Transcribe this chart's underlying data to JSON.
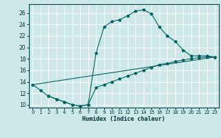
{
  "xlabel": "Humidex (Indice chaleur)",
  "bg_color": "#cde8e8",
  "grid_color": "#ffffff",
  "line_color": "#006060",
  "xlim": [
    -0.5,
    23.5
  ],
  "ylim": [
    9.5,
    27.5
  ],
  "xticks": [
    0,
    1,
    2,
    3,
    4,
    5,
    6,
    7,
    8,
    9,
    10,
    11,
    12,
    13,
    14,
    15,
    16,
    17,
    18,
    19,
    20,
    21,
    22,
    23
  ],
  "yticks": [
    10,
    12,
    14,
    16,
    18,
    20,
    22,
    24,
    26
  ],
  "line1_x": [
    0,
    1,
    2,
    3,
    4,
    5,
    6,
    7,
    8,
    9,
    10,
    11,
    12,
    13,
    14,
    15,
    16,
    17,
    18,
    19,
    20,
    21,
    22,
    23
  ],
  "line1_y": [
    13.5,
    12.5,
    11.5,
    11.0,
    10.5,
    10.0,
    9.8,
    10.0,
    19.0,
    23.5,
    24.5,
    24.8,
    25.5,
    26.3,
    26.5,
    25.8,
    23.5,
    22.0,
    21.0,
    19.5,
    18.5,
    18.5,
    18.5,
    18.3
  ],
  "line2_x": [
    2,
    3,
    4,
    5,
    6,
    7,
    8,
    9,
    10,
    11,
    12,
    13,
    14,
    15,
    16,
    17,
    18,
    19,
    20,
    21,
    22,
    23
  ],
  "line2_y": [
    11.5,
    11.0,
    10.5,
    10.0,
    9.8,
    10.0,
    13.0,
    13.5,
    14.0,
    14.5,
    15.0,
    15.5,
    16.0,
    16.5,
    17.0,
    17.2,
    17.5,
    17.8,
    18.0,
    18.2,
    18.3,
    18.3
  ],
  "line3_x": [
    0,
    23
  ],
  "line3_y": [
    13.5,
    18.3
  ]
}
